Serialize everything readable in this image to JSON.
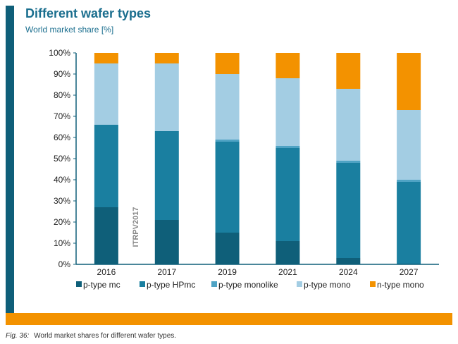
{
  "header": {
    "title": "Different wafer types",
    "subtitle": "World market share [%]"
  },
  "caption": {
    "fig": "Fig. 36:",
    "text": "World market shares for different wafer types."
  },
  "watermark": "ITRPV2017",
  "colors": {
    "p-type mc": "#0f5f79",
    "p-type HPmc": "#1a7fa0",
    "p-type monolike": "#4fa3c4",
    "p-type mono": "#a3cde3",
    "n-type mono": "#f39200",
    "axis": "#0f5f79",
    "brand_bar": "#0f5f79",
    "accent_bar": "#f39200"
  },
  "chart_data": {
    "type": "bar",
    "stacked": true,
    "categories": [
      "2016",
      "2017",
      "2019",
      "2021",
      "2024",
      "2027"
    ],
    "series": [
      {
        "name": "p-type mc",
        "values": [
          27,
          21,
          15,
          11,
          3,
          0
        ]
      },
      {
        "name": "p-type HPmc",
        "values": [
          39,
          42,
          43,
          44,
          45,
          39
        ]
      },
      {
        "name": "p-type monolike",
        "values": [
          0,
          0,
          1,
          1,
          1,
          1
        ]
      },
      {
        "name": "p-type mono",
        "values": [
          29,
          32,
          31,
          32,
          34,
          33
        ]
      },
      {
        "name": "n-type mono",
        "values": [
          5,
          5,
          10,
          12,
          17,
          27
        ]
      }
    ],
    "y_ticks": [
      "0%",
      "10%",
      "20%",
      "30%",
      "40%",
      "50%",
      "60%",
      "70%",
      "80%",
      "90%",
      "100%"
    ],
    "ylim": [
      0,
      100
    ],
    "grid": false,
    "legend_position": "bottom"
  }
}
